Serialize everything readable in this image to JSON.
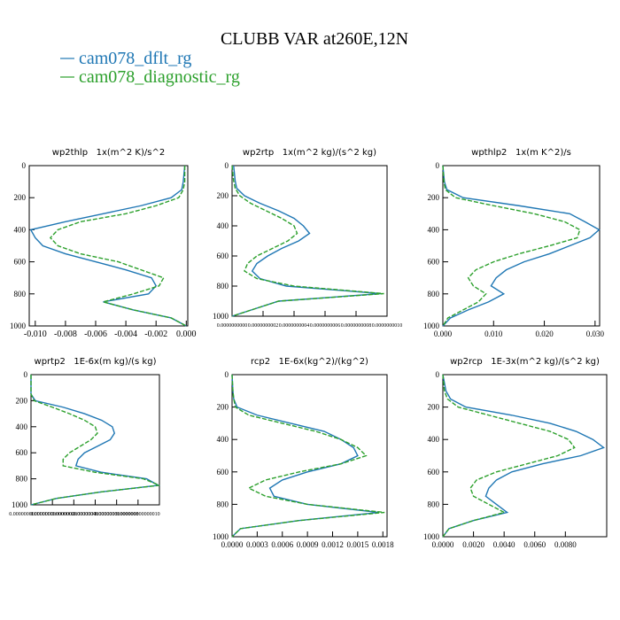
{
  "title": "CLUBB VAR at260E,12N",
  "chart_data": [
    {
      "type": "profile",
      "title": "wp2thlp   1x(m^2 K)/s^2",
      "levels": [
        0,
        100,
        150,
        200,
        250,
        300,
        350,
        400,
        450,
        500,
        550,
        600,
        650,
        700,
        750,
        800,
        850,
        900,
        950,
        1000
      ],
      "series": [
        {
          "name": "cam078_dflt_rg",
          "color": "#1f77b4",
          "values": [
            -0.0001,
            -0.0002,
            -0.0003,
            -0.001,
            -0.003,
            -0.0055,
            -0.008,
            -0.0103,
            -0.01,
            -0.0095,
            -0.008,
            -0.006,
            -0.004,
            -0.0023,
            -0.002,
            -0.0025,
            -0.0055,
            -0.0035,
            -0.001,
            0
          ]
        },
        {
          "name": "cam078_diagnostic_rg",
          "color": "#2ca02c",
          "dashed": true,
          "values": [
            -0.0001,
            -0.0001,
            -0.0002,
            -0.0005,
            -0.002,
            -0.004,
            -0.007,
            -0.0085,
            -0.009,
            -0.0085,
            -0.007,
            -0.0045,
            -0.003,
            -0.0015,
            -0.0018,
            -0.0035,
            -0.0055,
            -0.0035,
            -0.001,
            0
          ]
        }
      ],
      "xlim": [
        -0.0104,
        0.0001
      ],
      "xticks": [
        {
          "value": -0.01,
          "label": "-0.010"
        },
        {
          "value": -0.008,
          "label": "-0.008"
        },
        {
          "value": -0.006,
          "label": "-0.006"
        },
        {
          "value": -0.004,
          "label": "-0.004"
        },
        {
          "value": -0.002,
          "label": "-0.002"
        },
        {
          "value": 0,
          "label": "0.000"
        }
      ],
      "ylim": [
        1000,
        0
      ],
      "yticks": [
        0,
        200,
        400,
        600,
        800,
        1000
      ]
    },
    {
      "type": "profile",
      "title": "wp2rtp   1x(m^2 kg)/(s^2 kg)",
      "levels": [
        0,
        100,
        150,
        200,
        250,
        300,
        350,
        400,
        450,
        500,
        550,
        600,
        650,
        700,
        750,
        800,
        850,
        900,
        950,
        1000
      ],
      "series": [
        {
          "color": "#1f77b4",
          "values": [
            1e-11,
            2e-11,
            3e-11,
            8e-11,
            1.8e-10,
            3e-10,
            4e-10,
            4.6e-10,
            5e-10,
            4.3e-10,
            3.2e-10,
            2.3e-10,
            1.6e-10,
            1.3e-10,
            1.8e-10,
            3.5e-10,
            9.6e-10,
            3e-10,
            1.5e-10,
            0
          ]
        },
        {
          "color": "#2ca02c",
          "dashed": true,
          "values": [
            0,
            1e-11,
            2e-11,
            5e-11,
            1.2e-10,
            2.2e-10,
            3.2e-10,
            4e-10,
            4.2e-10,
            3.6e-10,
            2.6e-10,
            1.6e-10,
            1e-10,
            8e-11,
            1.6e-10,
            4e-10,
            9.8e-10,
            3e-10,
            1.5e-10,
            0
          ]
        }
      ],
      "xlim": [
        0,
        1e-09
      ],
      "xticks": [
        {
          "value": 0,
          "label": "0.0000000000"
        },
        {
          "value": 2e-10,
          "label": "0.0000000002"
        },
        {
          "value": 4e-10,
          "label": "0.0000000004"
        },
        {
          "value": 6e-10,
          "label": "0.0000000006"
        },
        {
          "value": 8e-10,
          "label": "0.0000000008"
        },
        {
          "value": 1e-09,
          "label": "0.0000000010"
        }
      ],
      "ylim": [
        1000,
        0
      ],
      "yticks": [
        0,
        200,
        400,
        600,
        800,
        1000
      ]
    },
    {
      "type": "profile",
      "title": "wpthlp2   1x(m K^2)/s",
      "levels": [
        0,
        100,
        150,
        200,
        250,
        300,
        350,
        400,
        450,
        500,
        550,
        600,
        650,
        700,
        750,
        800,
        850,
        900,
        950,
        1000
      ],
      "series": [
        {
          "color": "#1f77b4",
          "values": [
            0,
            0.0003,
            0.0008,
            0.004,
            0.015,
            0.025,
            0.028,
            0.0308,
            0.029,
            0.025,
            0.021,
            0.016,
            0.0125,
            0.0105,
            0.0095,
            0.012,
            0.009,
            0.005,
            0.0015,
            0
          ]
        },
        {
          "color": "#2ca02c",
          "dashed": true,
          "values": [
            0,
            0.0002,
            0.0005,
            0.0025,
            0.01,
            0.018,
            0.024,
            0.027,
            0.0265,
            0.021,
            0.015,
            0.01,
            0.0065,
            0.005,
            0.006,
            0.0085,
            0.007,
            0.004,
            0.001,
            0
          ]
        }
      ],
      "xlim": [
        0,
        0.0309
      ],
      "xticks": [
        {
          "value": 0,
          "label": "0.000"
        },
        {
          "value": 0.01,
          "label": "0.010"
        },
        {
          "value": 0.02,
          "label": "0.020"
        },
        {
          "value": 0.03,
          "label": "0.030"
        }
      ],
      "ylim": [
        1000,
        0
      ],
      "yticks": [
        0,
        200,
        400,
        600,
        800,
        1000
      ]
    },
    {
      "type": "profile",
      "title": "wprtp2   1E-6x(m kg)/(s kg)",
      "levels": [
        0,
        100,
        150,
        200,
        250,
        300,
        350,
        400,
        450,
        500,
        550,
        600,
        650,
        700,
        750,
        800,
        850,
        900,
        950,
        1000
      ],
      "series": [
        {
          "color": "#1f77b4",
          "values": [
            0,
            0,
            0,
            4e-16,
            3e-15,
            5e-15,
            6.6e-15,
            7.6e-15,
            7.8e-15,
            7.4e-15,
            6.2e-15,
            5e-15,
            4.4e-15,
            4.2e-15,
            6.6e-15,
            1.08e-14,
            1.19e-14,
            6.6e-15,
            2.4e-15,
            0
          ]
        },
        {
          "color": "#2ca02c",
          "dashed": true,
          "values": [
            0,
            0,
            0,
            3e-16,
            2e-15,
            3.6e-15,
            5e-15,
            6e-15,
            6.2e-15,
            5.6e-15,
            4.6e-15,
            3.6e-15,
            3e-15,
            3e-15,
            6e-15,
            1.05e-14,
            1.2e-14,
            6.6e-15,
            2.4e-15,
            0
          ]
        }
      ],
      "xlim": [
        0,
        1.2e-14
      ],
      "xticks": [
        {
          "value": 0,
          "label": "0.000000000000000"
        },
        {
          "value": 2e-15,
          "label": "0.000000000000002"
        },
        {
          "value": 4e-15,
          "label": "0.000000000000004"
        },
        {
          "value": 6e-15,
          "label": "0.000000000000006"
        },
        {
          "value": 8e-15,
          "label": "0.000000000000008"
        },
        {
          "value": 1e-14,
          "label": "0.000000000000010"
        }
      ],
      "ylim": [
        1000,
        0
      ],
      "yticks": [
        0,
        200,
        400,
        600,
        800,
        1000
      ]
    },
    {
      "type": "profile",
      "title": "rcp2   1E-6x(kg^2)/(kg^2)",
      "levels": [
        0,
        100,
        150,
        200,
        250,
        300,
        350,
        400,
        450,
        500,
        550,
        600,
        650,
        700,
        750,
        800,
        850,
        900,
        950,
        1000
      ],
      "series": [
        {
          "color": "#1f77b4",
          "values": [
            0,
            1e-05,
            2e-05,
            6e-05,
            0.0003,
            0.0007,
            0.0011,
            0.0013,
            0.00145,
            0.0015,
            0.0013,
            0.0009,
            0.0006,
            0.00045,
            0.0005,
            0.0009,
            0.00175,
            0.0008,
            0.0001,
            0
          ]
        },
        {
          "color": "#2ca02c",
          "dashed": true,
          "values": [
            0,
            1e-05,
            2e-05,
            4e-05,
            0.0002,
            0.0006,
            0.001,
            0.0013,
            0.0015,
            0.0016,
            0.0013,
            0.0008,
            0.0004,
            0.0002,
            0.0004,
            0.0009,
            0.00182,
            0.0008,
            0.0001,
            0
          ]
        }
      ],
      "xlim": [
        0,
        0.00185
      ],
      "xticks": [
        {
          "value": 0,
          "label": "0.0000"
        },
        {
          "value": 0.0003,
          "label": "0.0003"
        },
        {
          "value": 0.0006,
          "label": "0.0006"
        },
        {
          "value": 0.0009,
          "label": "0.0009"
        },
        {
          "value": 0.0012,
          "label": "0.0012"
        },
        {
          "value": 0.0015,
          "label": "0.0015"
        },
        {
          "value": 0.0018,
          "label": "0.0018"
        }
      ],
      "ylim": [
        1000,
        0
      ],
      "yticks": [
        0,
        200,
        400,
        600,
        800,
        1000
      ]
    },
    {
      "type": "profile",
      "title": "wp2rcp   1E-3x(m^2 kg)/(s^2 kg)",
      "levels": [
        0,
        100,
        150,
        200,
        250,
        300,
        350,
        400,
        450,
        500,
        550,
        600,
        650,
        700,
        750,
        800,
        850,
        900,
        950,
        1000
      ],
      "series": [
        {
          "color": "#1f77b4",
          "values": [
            0,
            0.0002,
            0.0005,
            0.0015,
            0.0045,
            0.007,
            0.0087,
            0.0098,
            0.0105,
            0.009,
            0.0065,
            0.0045,
            0.0035,
            0.003,
            0.0028,
            0.0035,
            0.0042,
            0.002,
            0.0004,
            0
          ]
        },
        {
          "color": "#2ca02c",
          "dashed": true,
          "values": [
            0,
            0.0001,
            0.0003,
            0.001,
            0.003,
            0.005,
            0.007,
            0.0082,
            0.0086,
            0.0075,
            0.0055,
            0.0035,
            0.0022,
            0.0018,
            0.002,
            0.003,
            0.004,
            0.002,
            0.0004,
            0
          ]
        }
      ],
      "xlim": [
        0,
        0.0107
      ],
      "xticks": [
        {
          "value": 0,
          "label": "0.0000"
        },
        {
          "value": 0.002,
          "label": "0.0020"
        },
        {
          "value": 0.004,
          "label": "0.0040"
        },
        {
          "value": 0.006,
          "label": "0.0060"
        },
        {
          "value": 0.008,
          "label": "0.0080"
        }
      ],
      "ylim": [
        1000,
        0
      ],
      "yticks": [
        0,
        200,
        400,
        600,
        800,
        1000
      ]
    }
  ]
}
